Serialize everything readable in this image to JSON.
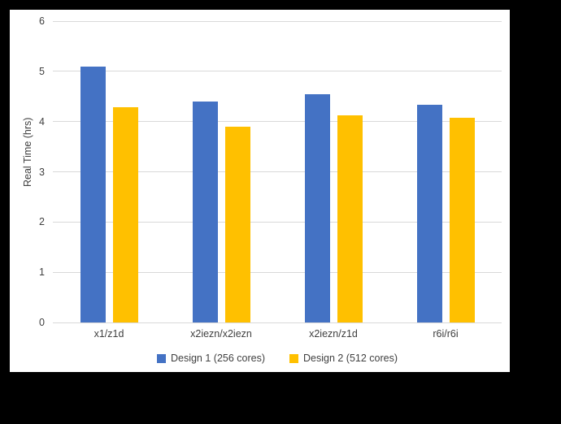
{
  "window": {
    "background_color": "#000000",
    "panel_color": "#FFFFFF",
    "gridline_color": "#D9D9D9",
    "text_color": "#404040"
  },
  "chart_data": {
    "type": "bar",
    "title": "",
    "xlabel": "",
    "ylabel": "Real Time (hrs)",
    "ylim": [
      0,
      6
    ],
    "yticks": [
      0,
      1,
      2,
      3,
      4,
      5,
      6
    ],
    "grid": true,
    "legend_position": "bottom-center",
    "categories": [
      "x1/z1d",
      "x2iezn/x2iezn",
      "x2iezn/z1d",
      "r6i/r6i"
    ],
    "series": [
      {
        "name": "Design 1 (256 cores)",
        "color": "#4472C4",
        "values": [
          5.1,
          4.4,
          4.55,
          4.33
        ]
      },
      {
        "name": "Design 2 (512 cores)",
        "color": "#FFC000",
        "values": [
          4.28,
          3.9,
          4.12,
          4.08
        ]
      }
    ]
  }
}
